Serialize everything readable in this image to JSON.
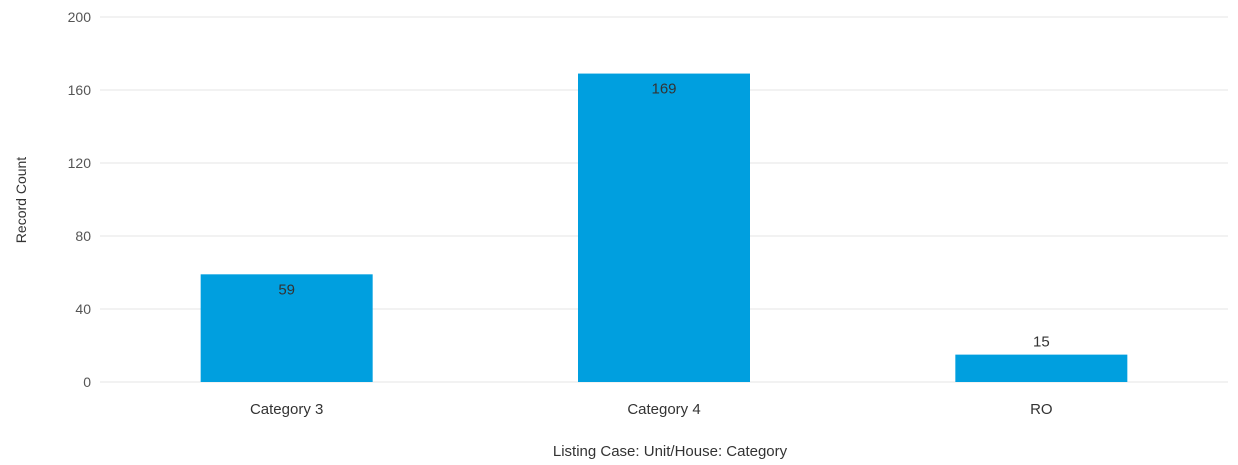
{
  "chart_data": {
    "type": "bar",
    "categories": [
      "Category 3",
      "Category 4",
      "RO"
    ],
    "values": [
      59,
      169,
      15
    ],
    "data_labels": [
      "59",
      "169",
      "15"
    ],
    "xlabel": "Listing Case: Unit/House: Category",
    "ylabel": "Record Count",
    "ylim": [
      0,
      200
    ],
    "yticks": [
      0,
      40,
      80,
      120,
      160,
      200
    ],
    "ytick_labels": [
      "0",
      "40",
      "80",
      "120",
      "160",
      "200"
    ],
    "grid": true,
    "legend": "none",
    "colors": {
      "bar": "#009fdf",
      "grid": "#e6e6e6",
      "axis_text": "#555555",
      "label_text": "#333333"
    }
  }
}
